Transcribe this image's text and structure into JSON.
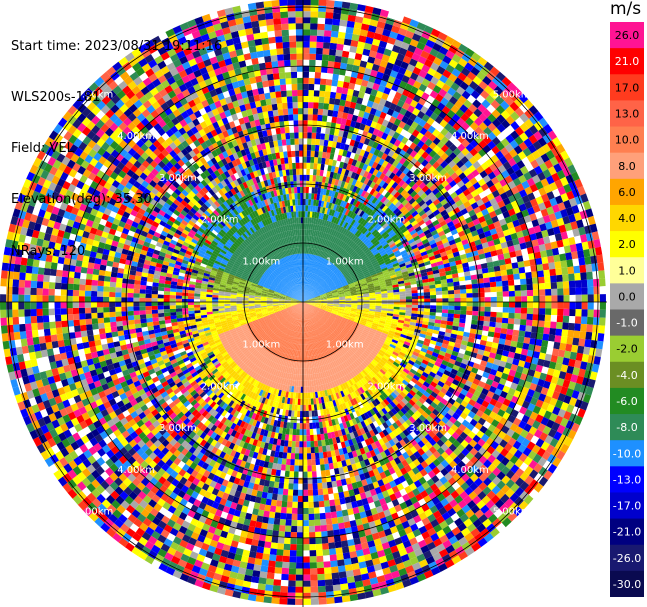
{
  "header": {
    "start_time": "Start time: 2023/08/31 19:11:16",
    "station": "WLS200s-181",
    "field": "Field: VEL",
    "elevation": "Elevation(deg): 35.30",
    "nrays": "NRays: 120"
  },
  "chart_data": {
    "type": "heatmap",
    "projection": "polar-ppi",
    "field": "VEL",
    "nrays": 120,
    "units": "m/s",
    "range_rings": [
      "1.00km",
      "2.00km",
      "3.00km",
      "4.00km",
      "5.00km"
    ],
    "colorbar": {
      "title": "m/s",
      "ticks": [
        "26.0",
        "21.0",
        "17.0",
        "13.0",
        "10.0",
        "8.0",
        "6.0",
        "4.0",
        "2.0",
        "1.0",
        "0.0",
        "-1.0",
        "-2.0",
        "-4.0",
        "-6.0",
        "-8.0",
        "-10.0",
        "-13.0",
        "-17.0",
        "-21.0",
        "-26.0",
        "-30.0"
      ],
      "colors": [
        "#ff1493",
        "#ff0000",
        "#ff3b1e",
        "#ff6347",
        "#ff7f50",
        "#ffa07a",
        "#ffa500",
        "#ffd700",
        "#ffff00",
        "#ffff99",
        "#a9a9a9",
        "#696969",
        "#9acd32",
        "#6b8e23",
        "#228b22",
        "#2e8b57",
        "#1e90ff",
        "#0000ff",
        "#0000cd",
        "#000080",
        "#191970",
        "#0a0a50"
      ]
    }
  }
}
